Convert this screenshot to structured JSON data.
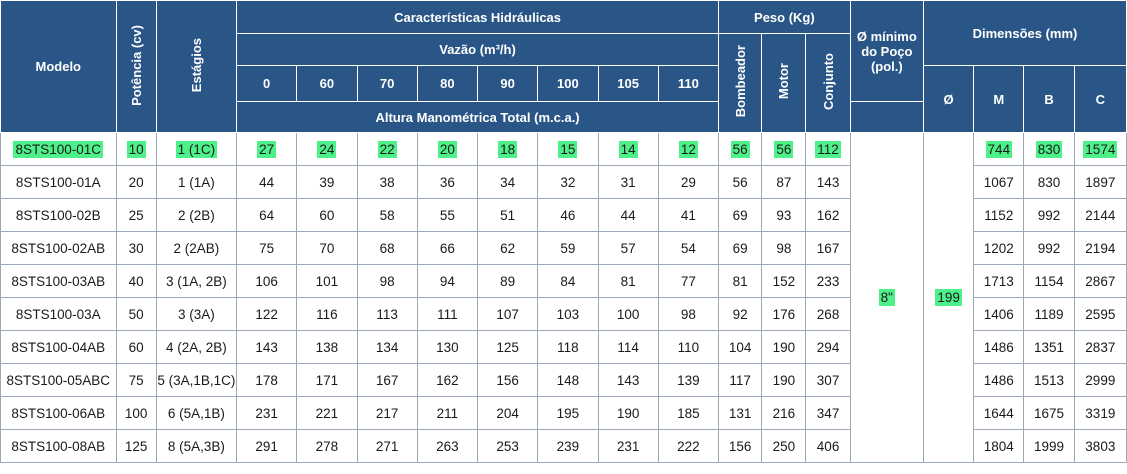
{
  "header": {
    "modelo": "Modelo",
    "potencia": "Potência (cv)",
    "estagios": "Estágios",
    "caracteristicas": "Características Hidráulicas",
    "vazao": "Vazão (m³/h)",
    "vazao_values": [
      "0",
      "60",
      "70",
      "80",
      "90",
      "100",
      "105",
      "110"
    ],
    "altura": "Altura Manométrica Total (m.c.a.)",
    "peso": "Peso (Kg)",
    "bombeador": "Bombeador",
    "motor": "Motor",
    "conjunto": "Conjunto",
    "diametro_min": "Ø mínimo do Poço (pol.)",
    "dimensoes": "Dimensões (mm)",
    "diam": "Ø",
    "m": "M",
    "b": "B",
    "c": "C"
  },
  "merged": {
    "poco": "8\"",
    "diam": "199"
  },
  "rows": [
    {
      "modelo": "8STS100-01C",
      "potencia": "10",
      "estagios": "1 (1C)",
      "alturas": [
        "27",
        "24",
        "22",
        "20",
        "18",
        "15",
        "14",
        "12"
      ],
      "bombeador": "56",
      "motor": "56",
      "conjunto": "112",
      "m": "744",
      "b": "830",
      "c": "1574"
    },
    {
      "modelo": "8STS100-01A",
      "potencia": "20",
      "estagios": "1 (1A)",
      "alturas": [
        "44",
        "39",
        "38",
        "36",
        "34",
        "32",
        "31",
        "29"
      ],
      "bombeador": "56",
      "motor": "87",
      "conjunto": "143",
      "m": "1067",
      "b": "830",
      "c": "1897"
    },
    {
      "modelo": "8STS100-02B",
      "potencia": "25",
      "estagios": "2 (2B)",
      "alturas": [
        "64",
        "60",
        "58",
        "55",
        "51",
        "46",
        "44",
        "41"
      ],
      "bombeador": "69",
      "motor": "93",
      "conjunto": "162",
      "m": "1152",
      "b": "992",
      "c": "2144"
    },
    {
      "modelo": "8STS100-02AB",
      "potencia": "30",
      "estagios": "2 (2AB)",
      "alturas": [
        "75",
        "70",
        "68",
        "66",
        "62",
        "59",
        "57",
        "54"
      ],
      "bombeador": "69",
      "motor": "98",
      "conjunto": "167",
      "m": "1202",
      "b": "992",
      "c": "2194"
    },
    {
      "modelo": "8STS100-03AB",
      "potencia": "40",
      "estagios": "3 (1A, 2B)",
      "alturas": [
        "106",
        "101",
        "98",
        "94",
        "89",
        "84",
        "81",
        "77"
      ],
      "bombeador": "81",
      "motor": "152",
      "conjunto": "233",
      "m": "1713",
      "b": "1154",
      "c": "2867"
    },
    {
      "modelo": "8STS100-03A",
      "potencia": "50",
      "estagios": "3 (3A)",
      "alturas": [
        "122",
        "116",
        "113",
        "111",
        "107",
        "103",
        "100",
        "98"
      ],
      "bombeador": "92",
      "motor": "176",
      "conjunto": "268",
      "m": "1406",
      "b": "1189",
      "c": "2595"
    },
    {
      "modelo": "8STS100-04AB",
      "potencia": "60",
      "estagios": "4 (2A, 2B)",
      "alturas": [
        "143",
        "138",
        "134",
        "130",
        "125",
        "118",
        "114",
        "110"
      ],
      "bombeador": "104",
      "motor": "190",
      "conjunto": "294",
      "m": "1486",
      "b": "1351",
      "c": "2837"
    },
    {
      "modelo": "8STS100-05ABC",
      "potencia": "75",
      "estagios": "5 (3A,1B,1C)",
      "alturas": [
        "178",
        "171",
        "167",
        "162",
        "156",
        "148",
        "143",
        "139"
      ],
      "bombeador": "117",
      "motor": "190",
      "conjunto": "307",
      "m": "1486",
      "b": "1513",
      "c": "2999"
    },
    {
      "modelo": "8STS100-06AB",
      "potencia": "100",
      "estagios": "6 (5A,1B)",
      "alturas": [
        "231",
        "221",
        "217",
        "211",
        "204",
        "195",
        "190",
        "185"
      ],
      "bombeador": "131",
      "motor": "216",
      "conjunto": "347",
      "m": "1644",
      "b": "1675",
      "c": "3319"
    },
    {
      "modelo": "8STS100-08AB",
      "potencia": "125",
      "estagios": "8 (5A,3B)",
      "alturas": [
        "291",
        "278",
        "271",
        "263",
        "253",
        "239",
        "231",
        "222"
      ],
      "bombeador": "156",
      "motor": "250",
      "conjunto": "406",
      "m": "1804",
      "b": "1999",
      "c": "3803"
    }
  ]
}
